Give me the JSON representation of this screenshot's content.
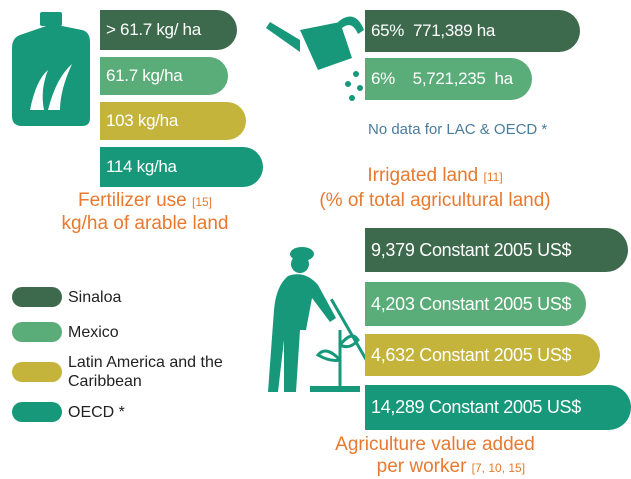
{
  "fertilizer": {
    "bars": [
      "> 61.7 kg/ ha",
      "61.7 kg/ha",
      "103 kg/ha",
      "114 kg/ha"
    ],
    "title": "Fertilizer use",
    "ref": "[15]",
    "subtitle": "kg/ha of arable land"
  },
  "irrigated": {
    "bars": [
      "65%  771,389 ha",
      "6%    5,721,235  ha"
    ],
    "note": "No data for LAC & OECD *",
    "title": "Irrigated land",
    "ref": "[11]",
    "subtitle": "(% of total agricultural land)"
  },
  "agriculture": {
    "bars": [
      "9,379 Constant 2005 US$",
      "4,203 Constant 2005 US$",
      "4,632 Constant 2005 US$",
      "14,289 Constant 2005 US$"
    ],
    "title": "Agriculture value added",
    "subtitle": "per worker",
    "ref": "[7, 10, 15]"
  },
  "legend": [
    "Sinaloa",
    "Mexico",
    "Latin America and the Caribbean",
    "OECD *"
  ]
}
